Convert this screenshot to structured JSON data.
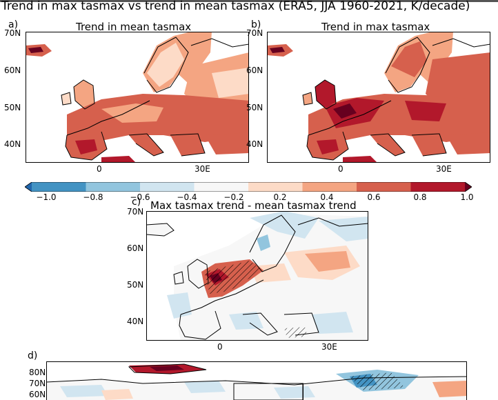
{
  "figure": {
    "title": "Trend in max tasmax vs trend in mean tasmax (ERA5, JJA 1960-2021, K/decade)"
  },
  "panels": {
    "a": {
      "label": "a)",
      "title": "Trend in mean tasmax",
      "lat_ticks": [
        "70N",
        "60N",
        "50N",
        "40N"
      ],
      "lon_ticks": [
        "0",
        "30E"
      ]
    },
    "b": {
      "label": "b)",
      "title": "Trend in max tasmax",
      "lat_ticks": [
        "70N",
        "60N",
        "50N",
        "40N"
      ],
      "lon_ticks": [
        "0",
        "30E"
      ]
    },
    "c": {
      "label": "c)",
      "title": "Max tasmax trend - mean tasmax trend",
      "lat_ticks": [
        "70N",
        "60N",
        "50N",
        "40N"
      ],
      "lon_ticks": [
        "0",
        "30E"
      ]
    },
    "d": {
      "label": "d)",
      "lat_ticks": [
        "80N",
        "70N",
        "60N"
      ]
    }
  },
  "colorbar": {
    "ticks": [
      "−1.0",
      "−0.8",
      "−0.6",
      "−0.4",
      "−0.2",
      "0.2",
      "0.4",
      "0.6",
      "0.8",
      "1.0"
    ],
    "colors": [
      "#2166ac",
      "#4393c3",
      "#92c5de",
      "#d1e5f0",
      "#f7f7f7",
      "#fddbc7",
      "#f4a582",
      "#d6604d",
      "#b2182b",
      "#67001f"
    ]
  }
}
